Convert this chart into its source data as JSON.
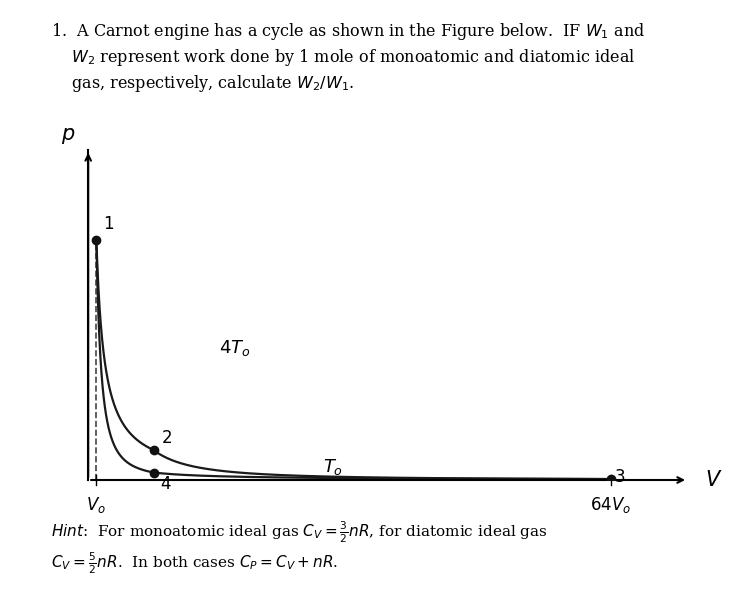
{
  "background_color": "#ffffff",
  "curve_color": "#1a1a1a",
  "point_color": "#111111",
  "dashed_color": "#444444",
  "V0": 1.0,
  "T_hot_mult": 4.0,
  "T_cold_mult": 1.0,
  "nR": 1.0,
  "gamma_mono": 1.6667,
  "point_label_1": "1",
  "point_label_2": "2",
  "point_label_3": "3",
  "point_label_4": "4",
  "isotherm_high_label": "$4T_o$",
  "isotherm_low_label": "$T_o$",
  "xlabel": "V",
  "ylabel": "p",
  "x_tick_Vo": "$V_o$",
  "x_tick_64Vo": "$64V_o$",
  "title_line1": "1.  A Carnot engine has a cycle as shown in the Figure below.  IF $W_1$ and",
  "title_line2": "    $W_2$ represent work done by 1 mole of monoatomic and diatomic ideal",
  "title_line3": "    gas, respectively, calculate $W_2/W_1$.",
  "hint_line1": "$\\it{Hint}$:  For monoatomic ideal gas $C_V = \\frac{3}{2}nR$, for diatomic ideal gas",
  "hint_line2": "$C_V = \\frac{5}{2}nR$.  In both cases $C_P = C_V + nR$.",
  "fig_width": 7.35,
  "fig_height": 6.0,
  "dpi": 100
}
